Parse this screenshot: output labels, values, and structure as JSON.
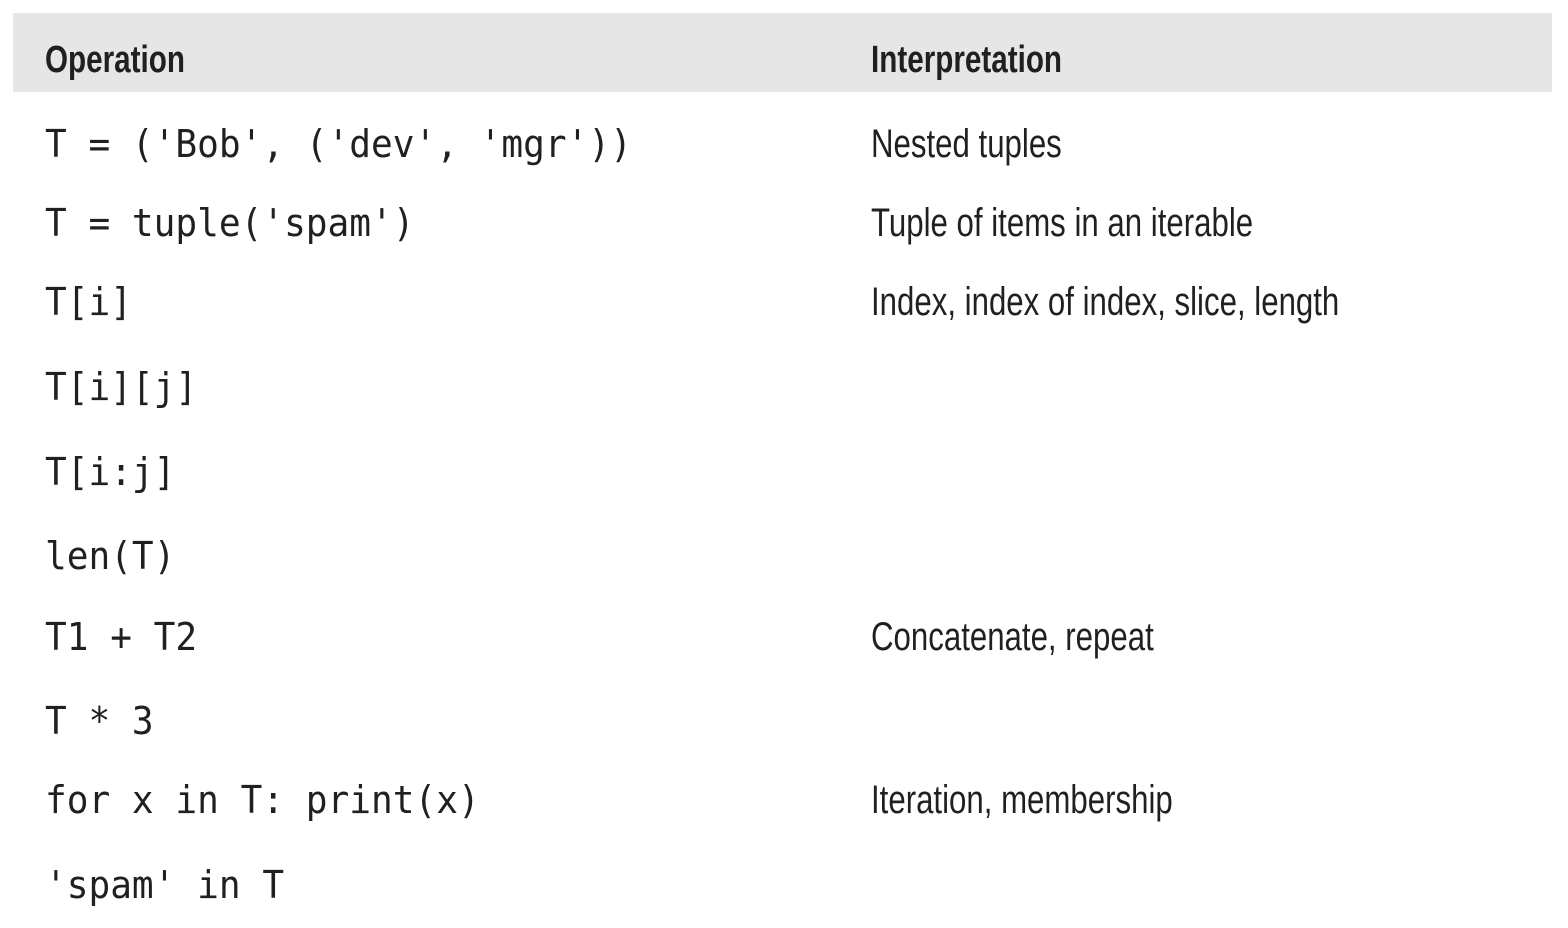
{
  "table": {
    "headers": {
      "operation": "Operation",
      "interpretation": "Interpretation"
    },
    "rows": [
      {
        "operation": "T = ('Bob', ('dev', 'mgr'))",
        "interpretation": "Nested tuples"
      },
      {
        "operation": "T = tuple('spam')",
        "interpretation": "Tuple of items in an iterable"
      },
      {
        "operation": "T[i]",
        "interpretation": "Index, index of index, slice, length"
      },
      {
        "operation": "T[i][j]",
        "interpretation": ""
      },
      {
        "operation": "T[i:j]",
        "interpretation": ""
      },
      {
        "operation": "len(T)",
        "interpretation": ""
      },
      {
        "operation": "T1 + T2",
        "interpretation": "Concatenate, repeat"
      },
      {
        "operation": "T * 3",
        "interpretation": ""
      },
      {
        "operation": "for x in T: print(x)",
        "interpretation": "Iteration, membership"
      },
      {
        "operation": "'spam' in T",
        "interpretation": ""
      }
    ]
  }
}
